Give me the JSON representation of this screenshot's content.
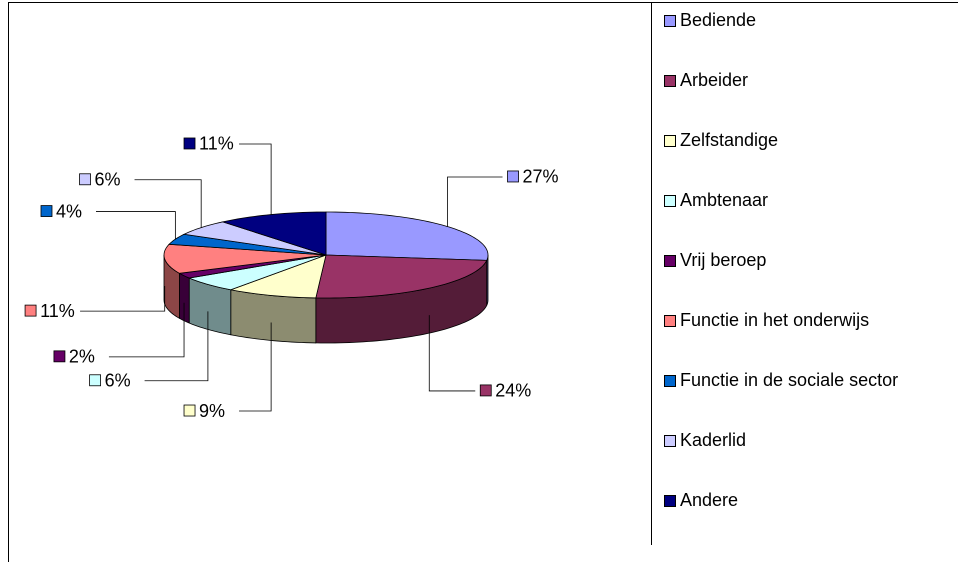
{
  "chart_data": {
    "type": "pie3d",
    "categories": [
      "Bediende",
      "Arbeider",
      "Zelfstandige",
      "Ambtenaar",
      "Vrij beroep",
      "Functie in het onderwijs",
      "Functie in de sociale sector",
      "Kaderlid",
      "Andere"
    ],
    "values": [
      27,
      24,
      9,
      6,
      2,
      11,
      4,
      6,
      11
    ],
    "value_labels": [
      "27%",
      "24%",
      "9%",
      "6%",
      "2%",
      "11%",
      "4%",
      "6%",
      "11%"
    ],
    "colors": [
      "#9999ff",
      "#993366",
      "#ffffcc",
      "#ccffff",
      "#660066",
      "#ff8080",
      "#0066cc",
      "#ccccff",
      "#000080"
    ],
    "legend": "right"
  }
}
